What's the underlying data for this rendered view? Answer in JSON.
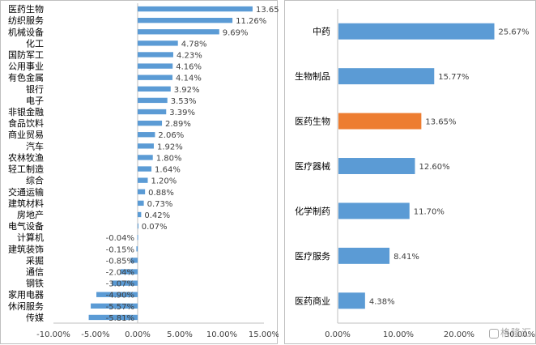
{
  "chart_data": [
    {
      "type": "bar",
      "orientation": "horizontal",
      "title": "",
      "categories": [
        "医药生物",
        "纺织服务",
        "机械设备",
        "化工",
        "国防军工",
        "公用事业",
        "有色金属",
        "银行",
        "电子",
        "非银金融",
        "食品饮料",
        "商业贸易",
        "汽车",
        "农林牧渔",
        "轻工制造",
        "综合",
        "交通运输",
        "建筑材料",
        "房地产",
        "电气设备",
        "计算机",
        "建筑装饰",
        "采掘",
        "通信",
        "钢铁",
        "家用电器",
        "休闲服务",
        "传媒"
      ],
      "values": [
        13.65,
        11.26,
        9.69,
        4.78,
        4.23,
        4.16,
        4.14,
        3.92,
        3.53,
        3.39,
        2.89,
        2.06,
        1.92,
        1.8,
        1.64,
        1.2,
        0.88,
        0.73,
        0.42,
        0.07,
        -0.04,
        -0.15,
        -0.85,
        -2.04,
        -3.07,
        -4.9,
        -5.57,
        -5.81
      ],
      "value_labels": [
        "13.65%",
        "11.26%",
        "9.69%",
        "4.78%",
        "4.23%",
        "4.16%",
        "4.14%",
        "3.92%",
        "3.53%",
        "3.39%",
        "2.89%",
        "2.06%",
        "1.92%",
        "1.80%",
        "1.64%",
        "1.20%",
        "0.88%",
        "0.73%",
        "0.42%",
        "0.07%",
        "-0.04%",
        "-0.15%",
        "-0.85%",
        "-2.04%",
        "-3.07%",
        "-4.90%",
        "-5.57%",
        "-5.81%"
      ],
      "xlim": [
        -10,
        15
      ],
      "xticks": [
        -10,
        -5,
        0,
        5,
        10,
        15
      ],
      "xtick_labels": [
        "-10.00%",
        "-5.00%",
        "0.00%",
        "5.00%",
        "10.00%",
        "15.00%"
      ],
      "bar_color": "#5b9bd5",
      "grid": false,
      "legend": "none"
    },
    {
      "type": "bar",
      "orientation": "horizontal",
      "title": "",
      "categories": [
        "中药",
        "生物制品",
        "医药生物",
        "医疗器械",
        "化学制药",
        "医疗服务",
        "医药商业"
      ],
      "values": [
        25.67,
        15.77,
        13.65,
        12.6,
        11.7,
        8.41,
        4.38
      ],
      "value_labels": [
        "25.67%",
        "15.77%",
        "13.65%",
        "12.60%",
        "11.70%",
        "8.41%",
        "4.38%"
      ],
      "highlight_index": 2,
      "xlim": [
        0,
        30
      ],
      "xticks": [
        0,
        10,
        20,
        30
      ],
      "xtick_labels": [
        "0.00%",
        "10.00%",
        "20.00%",
        "30.00%"
      ],
      "bar_color": "#5b9bd5",
      "highlight_color": "#ed7d31",
      "grid": false,
      "legend": "none"
    }
  ],
  "watermark": {
    "text": "格隆汇",
    "icon": "gelonghui-logo-icon"
  }
}
